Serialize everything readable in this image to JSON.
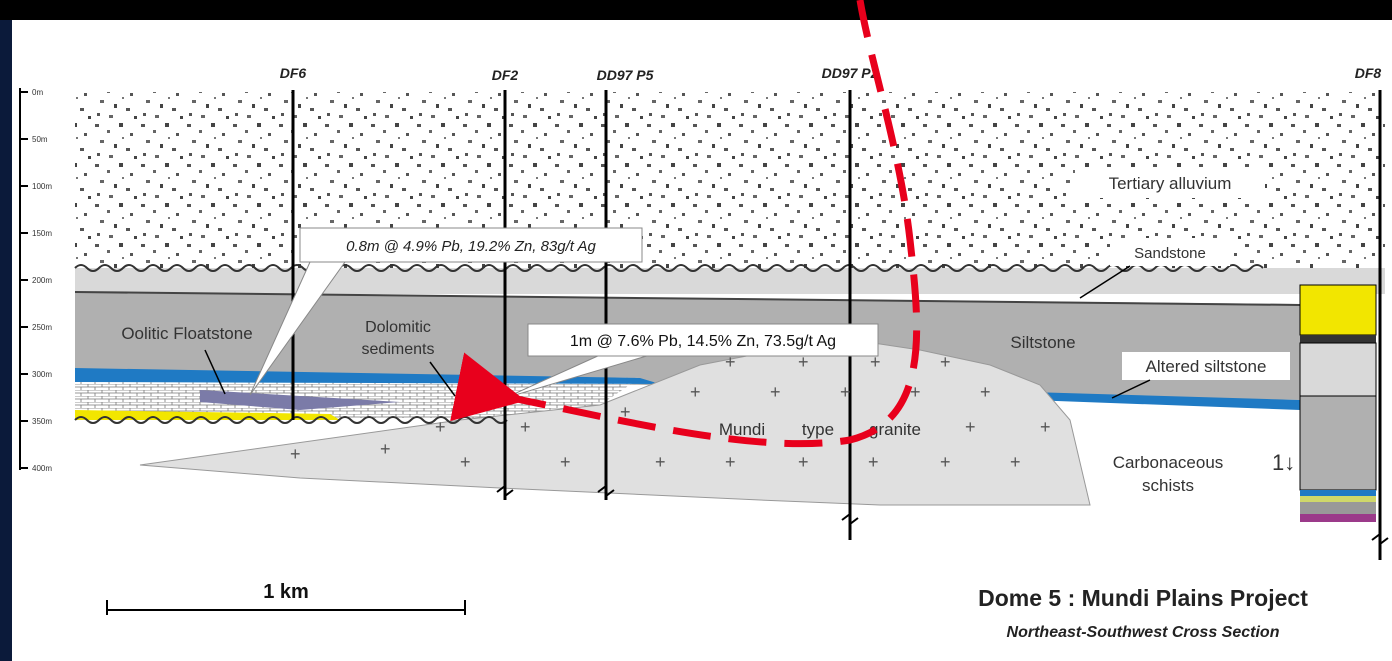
{
  "title": "Dome 5 : Mundi Plains Project",
  "subtitle": "Northeast-Southwest Cross Section",
  "scale_bar": {
    "label": "1 km"
  },
  "depth_axis": {
    "ticks": [
      "0m",
      "50m",
      "100m",
      "150m",
      "200m",
      "250m",
      "300m",
      "350m",
      "400m"
    ]
  },
  "drillholes": [
    "DF6",
    "DF2",
    "DD97 P5",
    "DD97 P2",
    "DF8"
  ],
  "units": {
    "alluvium": "Tertiary alluvium",
    "sandstone": "Sandstone",
    "siltstone": "Siltstone",
    "altered_siltstone": "Altered siltstone",
    "oolitic": "Oolitic Floatstone",
    "dolomitic_1": "Dolomitic",
    "dolomitic_2": "sediments",
    "granite_1": "Mundi",
    "granite_2": "type",
    "granite_3": "granite",
    "schist_1": "Carbonaceous",
    "schist_2": "schists"
  },
  "intercepts": {
    "df6": "0.8m @ 4.9% Pb, 19.2% Zn, 83g/t Ag",
    "df2": "1m @ 7.6% Pb, 14.5% Zn, 73.5g/t Ag"
  },
  "colors": {
    "alluvium": "#ffffff",
    "sandstone": "#d9d9d9",
    "siltstone": "#b0b0b0",
    "altered": "#1f7ac4",
    "granite": "#e0e0e0",
    "dolomite": "#7b7ba8",
    "yellow": "#f2e600",
    "fault_arrow": "#e8001c"
  }
}
